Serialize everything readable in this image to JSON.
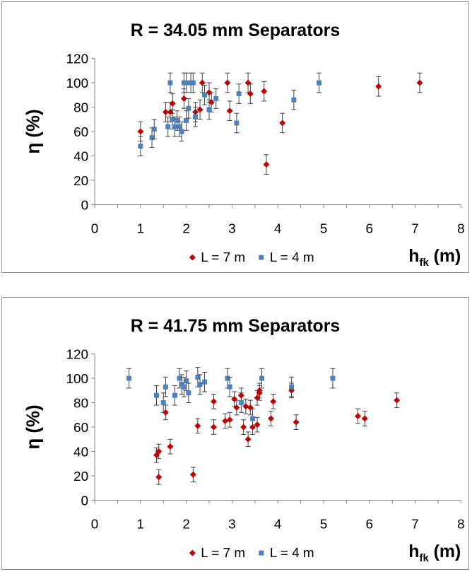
{
  "chart_data": [
    {
      "type": "scatter",
      "title": "R = 34.05 mm Separators",
      "ylabel": "η (%)",
      "xlabel": "h",
      "xlabel_sub": "fk",
      "xlabel_unit": " (m)",
      "xlim": [
        0,
        8
      ],
      "ylim": [
        0,
        120
      ],
      "xticks": [
        0,
        1,
        2,
        3,
        4,
        5,
        6,
        7,
        8
      ],
      "yticks": [
        0,
        20,
        40,
        60,
        80,
        100,
        120
      ],
      "grid": false,
      "legend_position": "bottom",
      "series": [
        {
          "name": "L = 7 m",
          "marker": "diamond",
          "color": "#c00000",
          "error_bar": 8,
          "points": [
            [
              1.0,
              60
            ],
            [
              1.55,
              76
            ],
            [
              1.65,
              76
            ],
            [
              1.7,
              83
            ],
            [
              1.95,
              87
            ],
            [
              2.2,
              76
            ],
            [
              2.3,
              78
            ],
            [
              2.35,
              100
            ],
            [
              2.5,
              92
            ],
            [
              2.55,
              84
            ],
            [
              2.9,
              100
            ],
            [
              2.95,
              77
            ],
            [
              3.35,
              100
            ],
            [
              3.4,
              91
            ],
            [
              3.7,
              93
            ],
            [
              3.75,
              33
            ],
            [
              4.1,
              67
            ],
            [
              6.2,
              97
            ],
            [
              7.1,
              100
            ]
          ]
        },
        {
          "name": "L = 4 m",
          "marker": "square",
          "color": "#4f81bd",
          "error_bar": 8,
          "points": [
            [
              1.0,
              48
            ],
            [
              1.25,
              55
            ],
            [
              1.3,
              62
            ],
            [
              1.6,
              64
            ],
            [
              1.65,
              100
            ],
            [
              1.7,
              70
            ],
            [
              1.75,
              64
            ],
            [
              1.8,
              69
            ],
            [
              1.85,
              64
            ],
            [
              1.9,
              60
            ],
            [
              1.95,
              100
            ],
            [
              2.0,
              69
            ],
            [
              2.0,
              100
            ],
            [
              2.05,
              79
            ],
            [
              2.1,
              100
            ],
            [
              2.15,
              100
            ],
            [
              2.2,
              72
            ],
            [
              2.4,
              90
            ],
            [
              2.5,
              78
            ],
            [
              2.65,
              87
            ],
            [
              3.1,
              67
            ],
            [
              3.15,
              91
            ],
            [
              4.35,
              86
            ],
            [
              4.9,
              100
            ]
          ]
        }
      ]
    },
    {
      "type": "scatter",
      "title": "R = 41.75 mm Separators",
      "ylabel": "η (%)",
      "xlabel": "h",
      "xlabel_sub": "fk",
      "xlabel_unit": " (m)",
      "xlim": [
        0,
        8
      ],
      "ylim": [
        0,
        120
      ],
      "xticks": [
        0,
        1,
        2,
        3,
        4,
        5,
        6,
        7,
        8
      ],
      "yticks": [
        0,
        20,
        40,
        60,
        80,
        100,
        120
      ],
      "grid": false,
      "legend_position": "bottom",
      "series": [
        {
          "name": "L = 7 m",
          "marker": "diamond",
          "color": "#c00000",
          "error_bar": 6,
          "points": [
            [
              1.35,
              37
            ],
            [
              1.4,
              40
            ],
            [
              1.4,
              19
            ],
            [
              1.55,
              72
            ],
            [
              1.65,
              44
            ],
            [
              2.15,
              21
            ],
            [
              2.25,
              61
            ],
            [
              2.6,
              81
            ],
            [
              2.6,
              60
            ],
            [
              2.85,
              65
            ],
            [
              2.95,
              66
            ],
            [
              3.05,
              83
            ],
            [
              3.1,
              76
            ],
            [
              3.2,
              86
            ],
            [
              3.25,
              60
            ],
            [
              3.3,
              77
            ],
            [
              3.35,
              50
            ],
            [
              3.4,
              76
            ],
            [
              3.45,
              60
            ],
            [
              3.55,
              62
            ],
            [
              3.55,
              84
            ],
            [
              3.6,
              90
            ],
            [
              3.6,
              88
            ],
            [
              3.85,
              67
            ],
            [
              3.9,
              81
            ],
            [
              4.3,
              90
            ],
            [
              4.4,
              64
            ],
            [
              5.75,
              69
            ],
            [
              5.9,
              67
            ],
            [
              6.6,
              82
            ]
          ]
        },
        {
          "name": "L = 4 m",
          "marker": "square",
          "color": "#4f81bd",
          "error_bar": 8,
          "points": [
            [
              0.75,
              100
            ],
            [
              1.35,
              86
            ],
            [
              1.5,
              80
            ],
            [
              1.55,
              93
            ],
            [
              1.75,
              86
            ],
            [
              1.85,
              100
            ],
            [
              1.9,
              95
            ],
            [
              1.95,
              93
            ],
            [
              2.0,
              98
            ],
            [
              2.05,
              88
            ],
            [
              2.25,
              101
            ],
            [
              2.3,
              95
            ],
            [
              2.4,
              97
            ],
            [
              2.9,
              100
            ],
            [
              2.95,
              93
            ],
            [
              3.2,
              80
            ],
            [
              3.45,
              67
            ],
            [
              3.65,
              100
            ],
            [
              4.3,
              93
            ],
            [
              5.2,
              100
            ]
          ]
        }
      ]
    }
  ]
}
